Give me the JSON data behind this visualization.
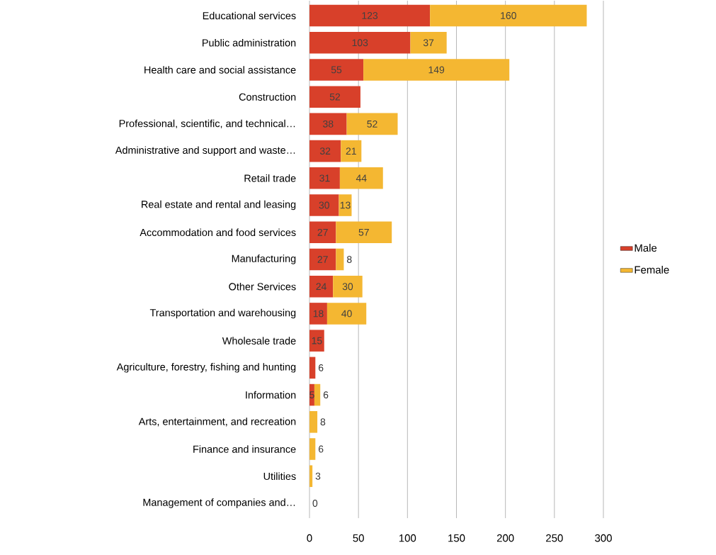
{
  "chart_data": {
    "type": "bar",
    "orientation": "horizontal",
    "stacked": true,
    "categories": [
      "Educational services",
      "Public administration",
      "Health care and social assistance",
      "Construction",
      "Professional, scientific, and technical…",
      "Administrative and support and waste…",
      "Retail trade",
      "Real estate and rental and leasing",
      "Accommodation and food services",
      "Manufacturing",
      "Other Services",
      "Transportation and warehousing",
      "Wholesale trade",
      "Agriculture, forestry, fishing and hunting",
      "Information",
      "Arts, entertainment, and recreation",
      "Finance and insurance",
      "Utilities",
      "Management of companies and…"
    ],
    "series": [
      {
        "name": "Male",
        "color": "#d8402a",
        "values": [
          123,
          103,
          55,
          52,
          38,
          32,
          31,
          30,
          27,
          27,
          24,
          18,
          15,
          6,
          5,
          null,
          null,
          null,
          0
        ]
      },
      {
        "name": "Female",
        "color": "#f4b732",
        "values": [
          160,
          37,
          149,
          null,
          52,
          21,
          44,
          13,
          57,
          8,
          30,
          40,
          null,
          null,
          6,
          8,
          6,
          3,
          null
        ]
      }
    ],
    "xlim": [
      0,
      300
    ],
    "xticks": [
      0,
      50,
      100,
      150,
      200,
      250,
      300
    ],
    "grid": "x",
    "legend": "right",
    "data_labels": true
  }
}
